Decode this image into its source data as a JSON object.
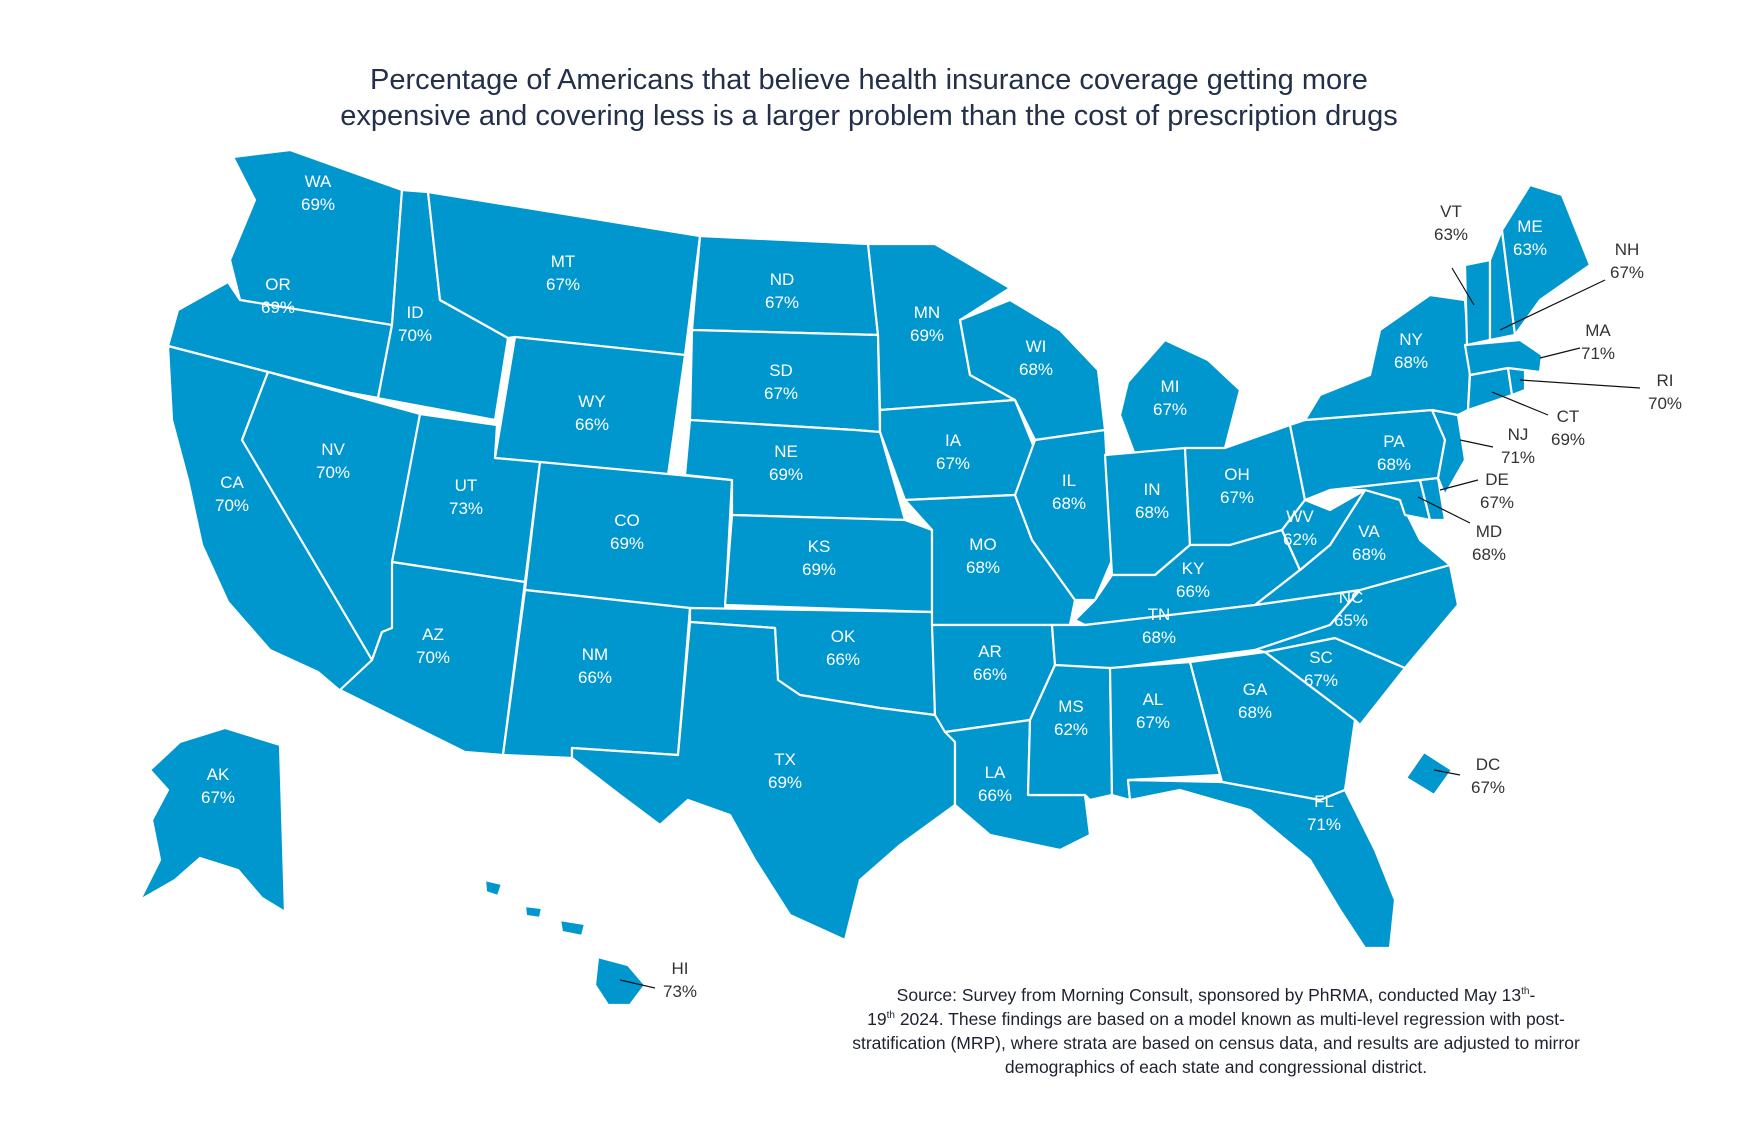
{
  "title": {
    "line1": "Percentage of Americans that believe health insurance coverage getting more",
    "line2": "expensive and covering less is a larger problem than the cost of prescription drugs"
  },
  "colors": {
    "fill": "#0096ce",
    "border": "#ffffff",
    "title": "#22304a"
  },
  "states": [
    {
      "abbr": "WA",
      "value": "69%"
    },
    {
      "abbr": "OR",
      "value": "69%"
    },
    {
      "abbr": "CA",
      "value": "70%"
    },
    {
      "abbr": "ID",
      "value": "70%"
    },
    {
      "abbr": "NV",
      "value": "70%"
    },
    {
      "abbr": "MT",
      "value": "67%"
    },
    {
      "abbr": "WY",
      "value": "66%"
    },
    {
      "abbr": "UT",
      "value": "73%"
    },
    {
      "abbr": "AZ",
      "value": "70%"
    },
    {
      "abbr": "CO",
      "value": "69%"
    },
    {
      "abbr": "NM",
      "value": "66%"
    },
    {
      "abbr": "ND",
      "value": "67%"
    },
    {
      "abbr": "SD",
      "value": "67%"
    },
    {
      "abbr": "NE",
      "value": "69%"
    },
    {
      "abbr": "KS",
      "value": "69%"
    },
    {
      "abbr": "OK",
      "value": "66%"
    },
    {
      "abbr": "TX",
      "value": "69%"
    },
    {
      "abbr": "MN",
      "value": "69%"
    },
    {
      "abbr": "IA",
      "value": "67%"
    },
    {
      "abbr": "MO",
      "value": "68%"
    },
    {
      "abbr": "AR",
      "value": "66%"
    },
    {
      "abbr": "LA",
      "value": "66%"
    },
    {
      "abbr": "WI",
      "value": "68%"
    },
    {
      "abbr": "IL",
      "value": "68%"
    },
    {
      "abbr": "MI",
      "value": "67%"
    },
    {
      "abbr": "IN",
      "value": "68%"
    },
    {
      "abbr": "OH",
      "value": "67%"
    },
    {
      "abbr": "KY",
      "value": "66%"
    },
    {
      "abbr": "TN",
      "value": "68%"
    },
    {
      "abbr": "MS",
      "value": "62%"
    },
    {
      "abbr": "AL",
      "value": "67%"
    },
    {
      "abbr": "GA",
      "value": "68%"
    },
    {
      "abbr": "FL",
      "value": "71%"
    },
    {
      "abbr": "SC",
      "value": "67%"
    },
    {
      "abbr": "NC",
      "value": "65%"
    },
    {
      "abbr": "VA",
      "value": "68%"
    },
    {
      "abbr": "WV",
      "value": "62%"
    },
    {
      "abbr": "PA",
      "value": "68%"
    },
    {
      "abbr": "NY",
      "value": "68%"
    },
    {
      "abbr": "ME",
      "value": "63%"
    },
    {
      "abbr": "VT",
      "value": "63%"
    },
    {
      "abbr": "NH",
      "value": "67%"
    },
    {
      "abbr": "MA",
      "value": "71%"
    },
    {
      "abbr": "RI",
      "value": "70%"
    },
    {
      "abbr": "CT",
      "value": "69%"
    },
    {
      "abbr": "NJ",
      "value": "71%"
    },
    {
      "abbr": "DE",
      "value": "67%"
    },
    {
      "abbr": "MD",
      "value": "68%"
    },
    {
      "abbr": "DC",
      "value": "67%"
    },
    {
      "abbr": "AK",
      "value": "67%"
    },
    {
      "abbr": "HI",
      "value": "73%"
    }
  ],
  "source": {
    "part1": "Source: Survey from Morning Consult, sponsored by PhRMA, conducted May 13",
    "sup1": "th",
    "part2": "-",
    "part3": "19",
    "sup2": "th",
    "part4": " 2024. These findings are based on a model known as multi-level regression with post-stratification (MRP), where strata are based on census data, and results are adjusted to mirror demographics of each state and congressional district."
  }
}
